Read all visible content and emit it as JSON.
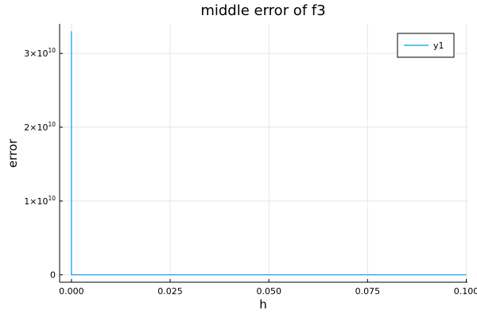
{
  "chart_data": {
    "type": "line",
    "title": "middle error of f3",
    "xlabel": "h",
    "ylabel": "error",
    "xlim": [
      -0.003,
      0.1003
    ],
    "ylim": [
      -1000000000.0,
      34000000000.0
    ],
    "grid": true,
    "legend_position": "top-right",
    "x_ticks": [
      {
        "value": 0.0,
        "label": "0.000"
      },
      {
        "value": 0.025,
        "label": "0.025"
      },
      {
        "value": 0.05,
        "label": "0.050"
      },
      {
        "value": 0.075,
        "label": "0.075"
      },
      {
        "value": 0.1,
        "label": "0.100"
      }
    ],
    "y_ticks": [
      {
        "value": 0,
        "base": "0",
        "exp": ""
      },
      {
        "value": 10000000000.0,
        "base": "1×10",
        "exp": "10"
      },
      {
        "value": 20000000000.0,
        "base": "2×10",
        "exp": "10"
      },
      {
        "value": 30000000000.0,
        "base": "3×10",
        "exp": "10"
      }
    ],
    "series": [
      {
        "name": "y1",
        "color": "#009af9",
        "x": [
          1e-10,
          1e-08,
          0.001,
          0.01,
          0.025,
          0.05,
          0.075,
          0.1
        ],
        "y": [
          33000000000.0,
          0,
          0,
          0,
          0,
          0,
          0,
          0
        ]
      }
    ]
  }
}
